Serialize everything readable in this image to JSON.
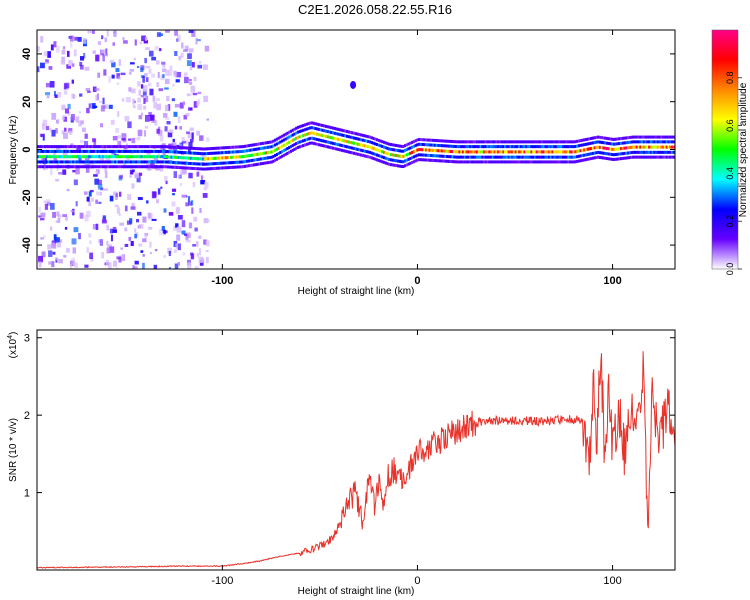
{
  "title": "C2E1.2026.058.22.55.R16",
  "chart_data": [
    {
      "type": "heatmap",
      "xlabel": "Height of straight line (km)",
      "ylabel": "Frequency (Hz)",
      "xlim": [
        -195,
        132
      ],
      "ylim": [
        -50,
        50
      ],
      "x_ticks": [
        -100,
        0,
        100
      ],
      "x_tick_labels": [
        "-100",
        "0",
        "100"
      ],
      "y_ticks": [
        -40,
        -20,
        0,
        20,
        40
      ],
      "y_tick_labels": [
        "-40",
        "-20",
        "0",
        "20",
        "40"
      ],
      "ridge": {
        "description_x": [
          -195,
          -150,
          -130,
          -110,
          -90,
          -75,
          -62,
          -55,
          -45,
          -35,
          -25,
          -15,
          -8,
          0,
          20,
          60,
          80,
          92,
          100,
          110,
          132
        ],
        "frequency_hz": [
          -3,
          -3,
          -3,
          -4,
          -3,
          -1,
          5,
          7,
          5,
          3,
          1,
          -2,
          -3,
          0,
          -1,
          -1,
          -1,
          1,
          0,
          1,
          1
        ]
      },
      "colorbar": {
        "label": "Normalized spectral amplitude",
        "range": [
          0.0,
          1.0
        ],
        "ticks": [
          0.0,
          0.2,
          0.4,
          0.6,
          0.8
        ],
        "tick_labels": [
          "0.0",
          "0.2",
          "0.4",
          "0.6",
          "0.8"
        ],
        "colors": [
          "#ffffff",
          "#6600ff",
          "#0000ff",
          "#00ffff",
          "#00ff00",
          "#ffff00",
          "#ff8800",
          "#ff0000",
          "#ff0088"
        ]
      }
    },
    {
      "type": "line",
      "xlabel": "Height of straight line (km)",
      "ylabel": "SNR (10 * v/v)",
      "scale_label": "(x10",
      "scale_exponent": "4",
      "scale_close": ")",
      "xlim": [
        -195,
        132
      ],
      "ylim": [
        0,
        3.1
      ],
      "x_ticks": [
        -100,
        0,
        100
      ],
      "x_tick_labels": [
        "-100",
        "0",
        "100"
      ],
      "y_ticks": [
        1,
        2,
        3
      ],
      "y_tick_labels": [
        "1",
        "2",
        "3"
      ],
      "color": "#e8322a",
      "series": [
        {
          "name": "SNR",
          "x": [
            -195,
            -150,
            -120,
            -100,
            -90,
            -80,
            -70,
            -60,
            -50,
            -42,
            -38,
            -35,
            -32,
            -30,
            -28,
            -25,
            -22,
            -20,
            -18,
            -15,
            -12,
            -10,
            -5,
            0,
            5,
            10,
            15,
            20,
            25,
            30,
            40,
            50,
            60,
            70,
            80,
            85,
            88,
            90,
            92,
            94,
            96,
            98,
            100,
            103,
            106,
            110,
            113,
            116,
            118,
            120,
            124,
            128,
            132
          ],
          "y": [
            0.03,
            0.04,
            0.05,
            0.05,
            0.08,
            0.12,
            0.18,
            0.22,
            0.3,
            0.45,
            0.7,
            0.9,
            1.0,
            0.8,
            0.6,
            1.2,
            0.8,
            1.1,
            0.9,
            1.2,
            1.3,
            1.1,
            1.25,
            1.5,
            1.6,
            1.65,
            1.72,
            1.8,
            1.85,
            1.9,
            1.93,
            1.93,
            1.92,
            1.93,
            1.95,
            1.9,
            1.4,
            2.4,
            1.6,
            2.9,
            1.3,
            2.5,
            1.5,
            2.1,
            1.5,
            2.2,
            1.9,
            2.6,
            0.5,
            2.3,
            1.6,
            2.1,
            1.6
          ]
        }
      ]
    }
  ]
}
